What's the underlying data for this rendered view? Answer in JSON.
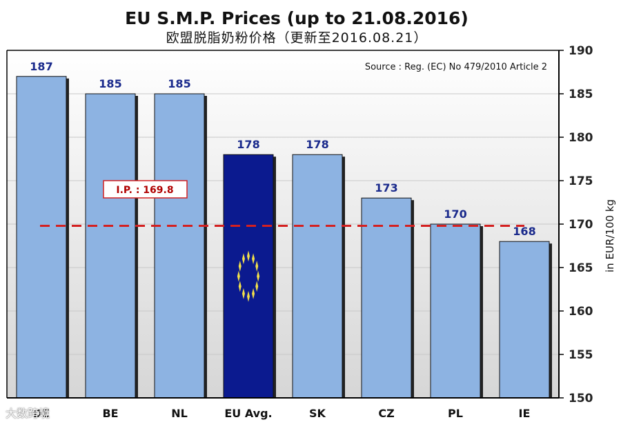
{
  "chart_data": {
    "type": "bar",
    "title": "EU S.M.P. Prices  (up to 21.08.2016)",
    "subtitle": "欧盟脱脂奶粉价格（更新至2016.08.21）",
    "source": "Source : Reg. (EC) No 479/2010 Article 2",
    "ylabel": "in EUR/100 kg",
    "xlabel": "",
    "categories": [
      "DE",
      "BE",
      "NL",
      "EU Avg.",
      "SK",
      "CZ",
      "PL",
      "IE"
    ],
    "values": [
      187,
      185,
      185,
      178,
      178,
      173,
      170,
      168
    ],
    "value_labels": [
      "187",
      "185",
      "185",
      "178",
      "178",
      "173",
      "170",
      "168"
    ],
    "ylim": [
      150,
      190
    ],
    "yticks": [
      "150",
      "155",
      "160",
      "165",
      "170",
      "175",
      "180",
      "185",
      "190"
    ],
    "y_axis_side": "right",
    "grid": true,
    "highlight_category": "EU Avg.",
    "reference_line": {
      "label": "I.P. : 169.8",
      "value": 169.8
    },
    "colors": {
      "bar": "#8db3e2",
      "highlight_bar": "#0b1a8f",
      "bar_edge": "#111111",
      "shadow": "#222222",
      "value_text": "#1a2a8c",
      "reference_line": "#d42020",
      "stars": "#f2e04a"
    }
  },
  "watermark": "大数跨境"
}
